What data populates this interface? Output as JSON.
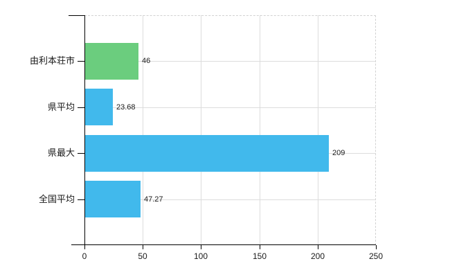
{
  "chart_data": {
    "type": "bar",
    "orientation": "horizontal",
    "title": "",
    "categories": [
      "由利本荘市",
      "県平均",
      "県最大",
      "全国平均"
    ],
    "values": [
      46,
      23.68,
      209,
      47.27
    ],
    "value_labels": [
      "46",
      "23.68",
      "209",
      "47.27"
    ],
    "bar_colors": [
      "#6bcd7e",
      "#41b9ec",
      "#41b9ec",
      "#41b9ec"
    ],
    "xlim": [
      0,
      250
    ],
    "x_ticks": [
      0,
      50,
      100,
      150,
      200,
      250
    ],
    "x_tick_labels": [
      "0",
      "50",
      "100",
      "150",
      "200",
      "250"
    ],
    "grid": true,
    "legend": false
  },
  "colors": {
    "background": "#ffffff",
    "axis": "#000000",
    "grid": "#dcdcdc",
    "dashed_border": "#d2d2d2",
    "text": "#1a1a1a",
    "bar_green": "#6bcd7e",
    "bar_blue": "#41b9ec"
  }
}
